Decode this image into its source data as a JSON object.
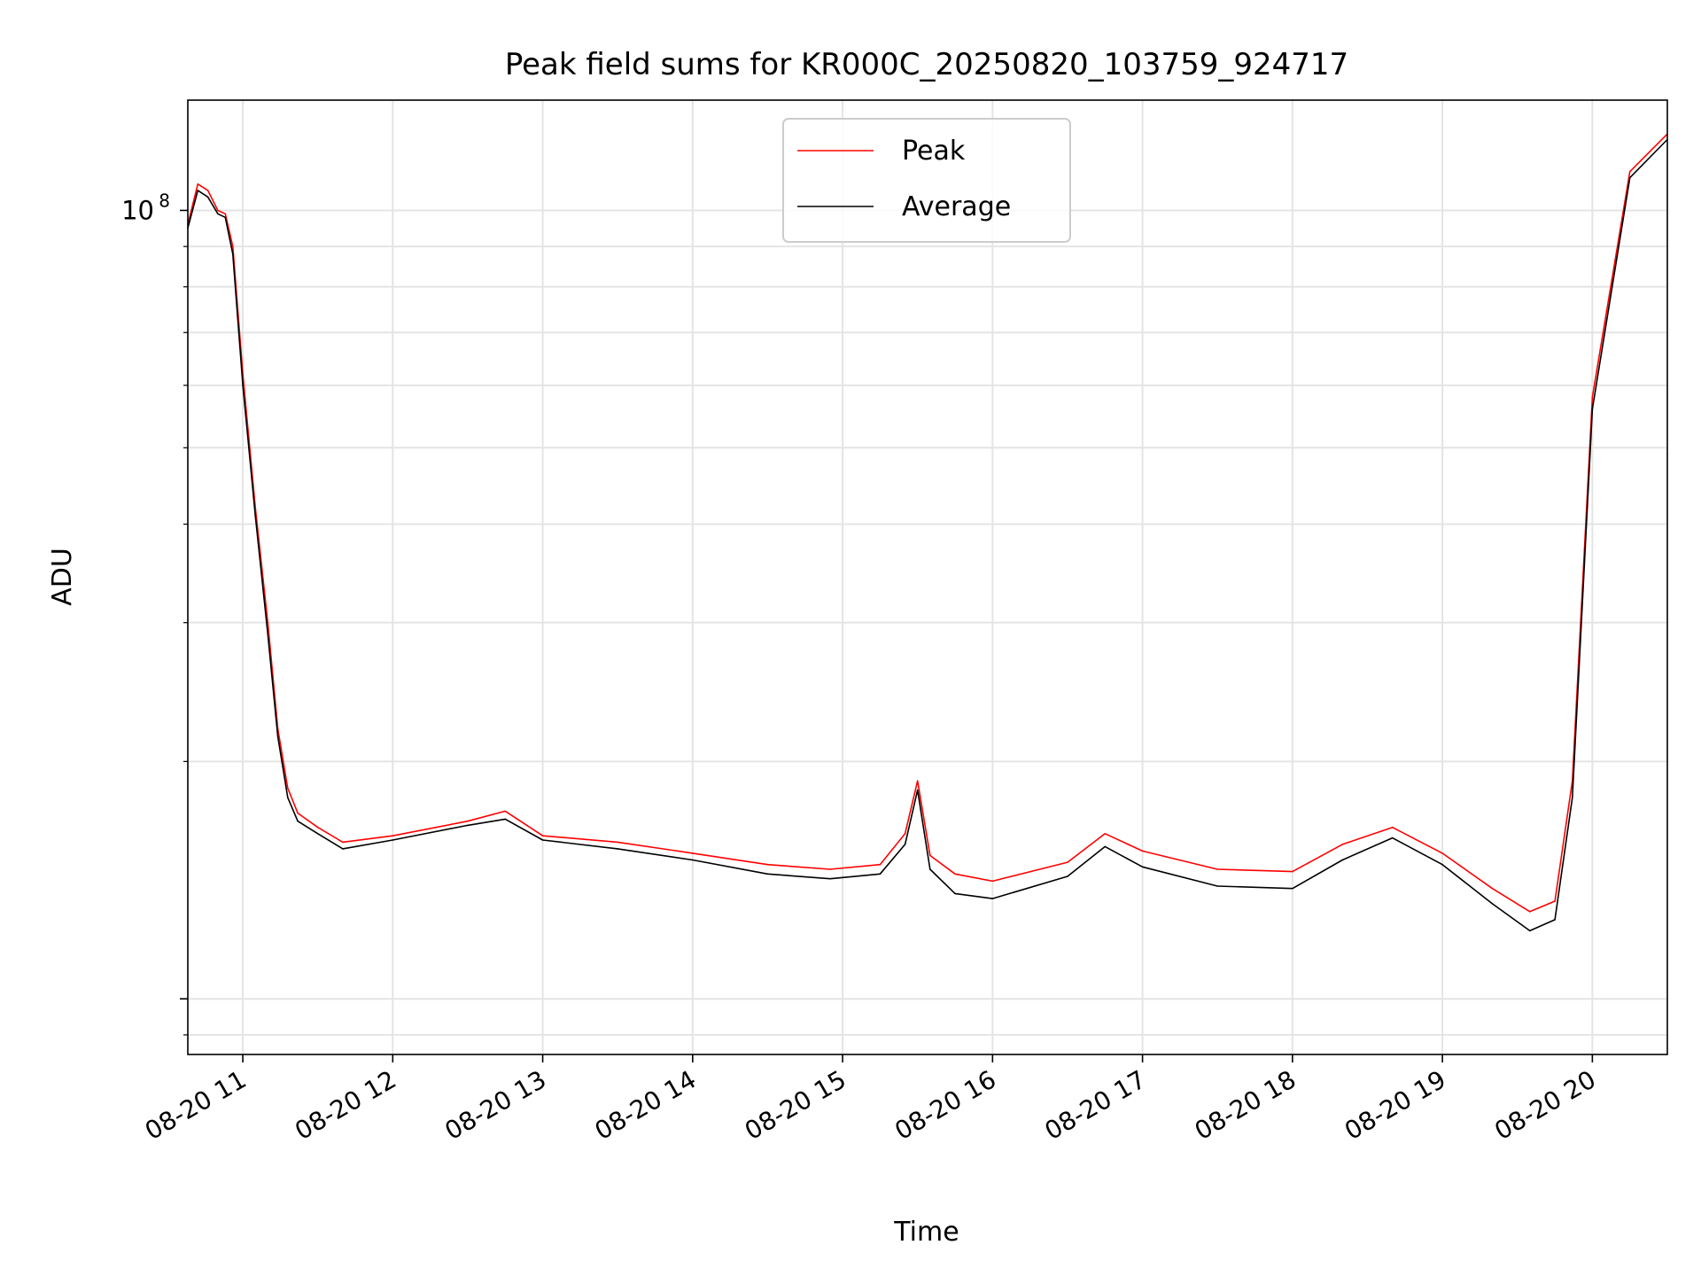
{
  "chart_data": {
    "type": "line",
    "title": "Peak field sums for KR000C_20250820_103759_924717",
    "xlabel": "Time",
    "ylabel": "ADU",
    "yscale": "log",
    "xlim": [
      "08-20 10:38",
      "08-20 20:30"
    ],
    "ylim": [
      8500000,
      138000000
    ],
    "x_ticks": [
      "08-20 11",
      "08-20 12",
      "08-20 13",
      "08-20 14",
      "08-20 15",
      "08-20 16",
      "08-20 17",
      "08-20 18",
      "08-20 19",
      "08-20 20"
    ],
    "y_tick_labels": [
      {
        "value": 100000000,
        "base": "10",
        "exp": "8"
      }
    ],
    "grid": true,
    "legend_position": "top-center",
    "series": [
      {
        "name": "Peak",
        "color": "#ff0000",
        "x": [
          "08-20 10:38",
          "08-20 10:42",
          "08-20 10:46",
          "08-20 10:50",
          "08-20 10:53",
          "08-20 10:56",
          "08-20 11:00",
          "08-20 11:05",
          "08-20 11:10",
          "08-20 11:14",
          "08-20 11:18",
          "08-20 11:22",
          "08-20 11:30",
          "08-20 11:40",
          "08-20 12:00",
          "08-20 12:30",
          "08-20 12:45",
          "08-20 13:00",
          "08-20 13:30",
          "08-20 14:00",
          "08-20 14:30",
          "08-20 14:55",
          "08-20 15:15",
          "08-20 15:25",
          "08-20 15:30",
          "08-20 15:35",
          "08-20 15:45",
          "08-20 16:00",
          "08-20 16:30",
          "08-20 16:45",
          "08-20 17:00",
          "08-20 17:30",
          "08-20 18:00",
          "08-20 18:20",
          "08-20 18:40",
          "08-20 19:00",
          "08-20 19:20",
          "08-20 19:35",
          "08-20 19:45",
          "08-20 19:52",
          "08-20 20:00",
          "08-20 20:15",
          "08-20 20:30"
        ],
        "y": [
          96000000,
          108000000,
          106000000,
          100000000,
          99000000,
          90000000,
          62000000,
          42000000,
          30000000,
          22000000,
          18500000,
          17200000,
          16500000,
          15800000,
          16100000,
          16800000,
          17300000,
          16100000,
          15800000,
          15300000,
          14800000,
          14600000,
          14800000,
          16200000,
          18900000,
          15200000,
          14400000,
          14100000,
          14900000,
          16200000,
          15400000,
          14600000,
          14500000,
          15700000,
          16500000,
          15300000,
          13800000,
          12900000,
          13300000,
          18900000,
          58000000,
          112000000,
          125000000
        ]
      },
      {
        "name": "Average",
        "color": "#000000",
        "x": [
          "08-20 10:38",
          "08-20 10:42",
          "08-20 10:46",
          "08-20 10:50",
          "08-20 10:53",
          "08-20 10:56",
          "08-20 11:00",
          "08-20 11:05",
          "08-20 11:10",
          "08-20 11:14",
          "08-20 11:18",
          "08-20 11:22",
          "08-20 11:30",
          "08-20 11:40",
          "08-20 12:00",
          "08-20 12:30",
          "08-20 12:45",
          "08-20 13:00",
          "08-20 13:30",
          "08-20 14:00",
          "08-20 14:30",
          "08-20 14:55",
          "08-20 15:15",
          "08-20 15:25",
          "08-20 15:30",
          "08-20 15:35",
          "08-20 15:45",
          "08-20 16:00",
          "08-20 16:30",
          "08-20 16:45",
          "08-20 17:00",
          "08-20 17:30",
          "08-20 18:00",
          "08-20 18:20",
          "08-20 18:40",
          "08-20 19:00",
          "08-20 19:20",
          "08-20 19:35",
          "08-20 19:45",
          "08-20 19:52",
          "08-20 20:00",
          "08-20 20:15",
          "08-20 20:30"
        ],
        "y": [
          95000000,
          106000000,
          104000000,
          99000000,
          98000000,
          88000000,
          60000000,
          41000000,
          29000000,
          21500000,
          18000000,
          16800000,
          16200000,
          15500000,
          15900000,
          16600000,
          16900000,
          15900000,
          15500000,
          15000000,
          14400000,
          14200000,
          14400000,
          15700000,
          18400000,
          14600000,
          13600000,
          13400000,
          14300000,
          15600000,
          14700000,
          13900000,
          13800000,
          15000000,
          16000000,
          14800000,
          13200000,
          12200000,
          12600000,
          18000000,
          56000000,
          110000000,
          123000000
        ]
      }
    ]
  }
}
